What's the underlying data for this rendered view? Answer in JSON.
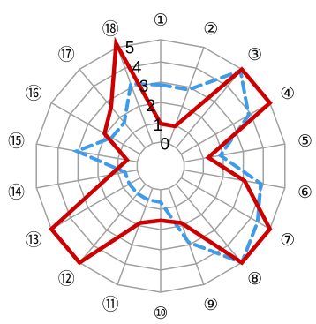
{
  "chart_data": {
    "type": "radar",
    "axes": [
      "①",
      "②",
      "③",
      "④",
      "⑤",
      "⑥",
      "⑦",
      "⑧",
      "⑨",
      "⑩",
      "⑪",
      "⑫",
      "⑬",
      "⑭",
      "⑮",
      "⑯",
      "⑰",
      "⑱"
    ],
    "rlim": [
      0,
      5
    ],
    "rticks": [
      "0",
      "1",
      "2",
      "3",
      "4",
      "5"
    ],
    "grid": true,
    "series": [
      {
        "style": "solid",
        "color": "#cc0000",
        "values": [
          0.9,
          0.9,
          5.0,
          5.0,
          1.2,
          3.0,
          5.0,
          5.0,
          1.8,
          1.5,
          1.8,
          5.0,
          5.0,
          1.3,
          0.5,
          2.0,
          2.6,
          5.2
        ]
      },
      {
        "style": "dashed",
        "color": "#3d9be9",
        "values": [
          2.8,
          2.8,
          4.9,
          3.8,
          1.8,
          3.8,
          4.3,
          5.0,
          2.8,
          0.6,
          0.6,
          0.6,
          0.6,
          0.6,
          3.0,
          1.6,
          1.6,
          3.1
        ]
      }
    ]
  }
}
